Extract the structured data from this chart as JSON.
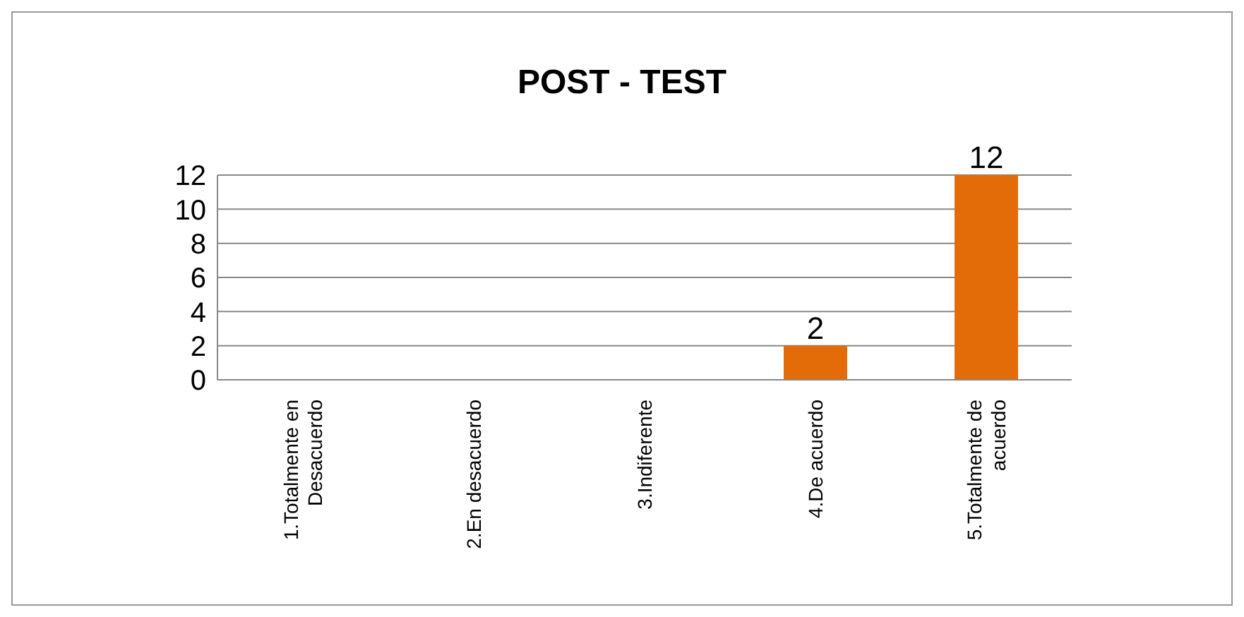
{
  "chart_data": {
    "type": "bar",
    "title": "POST - TEST",
    "categories": [
      "1.Totalmente en Desacuerdo",
      "2.En desacuerdo",
      "3.Indiferente",
      "4.De acuerdo",
      "5.Totalmente de acuerdo"
    ],
    "values": [
      0,
      0,
      0,
      2,
      12
    ],
    "color": "#e36c09",
    "value_labels": [
      null,
      null,
      null,
      "2",
      "12"
    ],
    "ylim": [
      0,
      12
    ],
    "yticks": [
      0,
      2,
      4,
      6,
      8,
      10,
      12
    ],
    "grid": "y"
  }
}
